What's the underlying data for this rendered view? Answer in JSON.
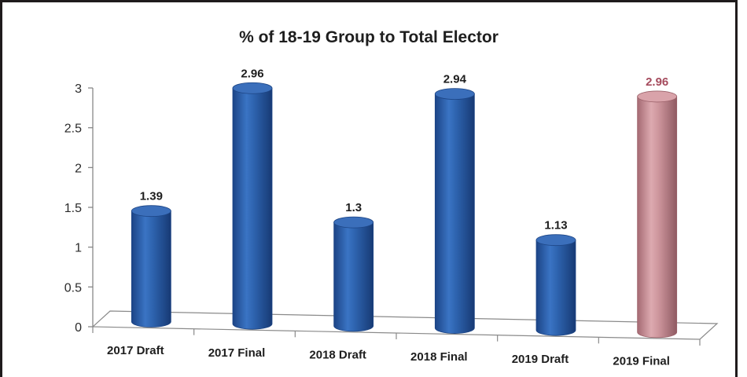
{
  "chart_data": {
    "type": "bar",
    "title": "% of 18-19 Group to Total Elector",
    "xlabel": "",
    "ylabel": "",
    "ylim": [
      0,
      3
    ],
    "yticks": [
      "0",
      "0.5",
      "1",
      "1.5",
      "2",
      "2.5",
      "3"
    ],
    "categories": [
      "2017 Draft",
      "2017 Final",
      "2018 Draft",
      "2018 Final",
      "2019 Draft",
      "2019 Final"
    ],
    "values": [
      1.39,
      2.96,
      1.3,
      2.94,
      1.13,
      2.96
    ],
    "data_labels": [
      "1.39",
      "2.96",
      "1.3",
      "2.94",
      "1.13",
      "2.96"
    ],
    "bar_colors": [
      "#2a5ea8",
      "#2a5ea8",
      "#2a5ea8",
      "#2a5ea8",
      "#2a5ea8",
      "#c98e96"
    ],
    "label_colors": [
      "#1e1e1e",
      "#1e1e1e",
      "#1e1e1e",
      "#1e1e1e",
      "#1e1e1e",
      "#a54b5d"
    ],
    "shape": "3d-cylinder",
    "grid": false,
    "legend": "none"
  }
}
